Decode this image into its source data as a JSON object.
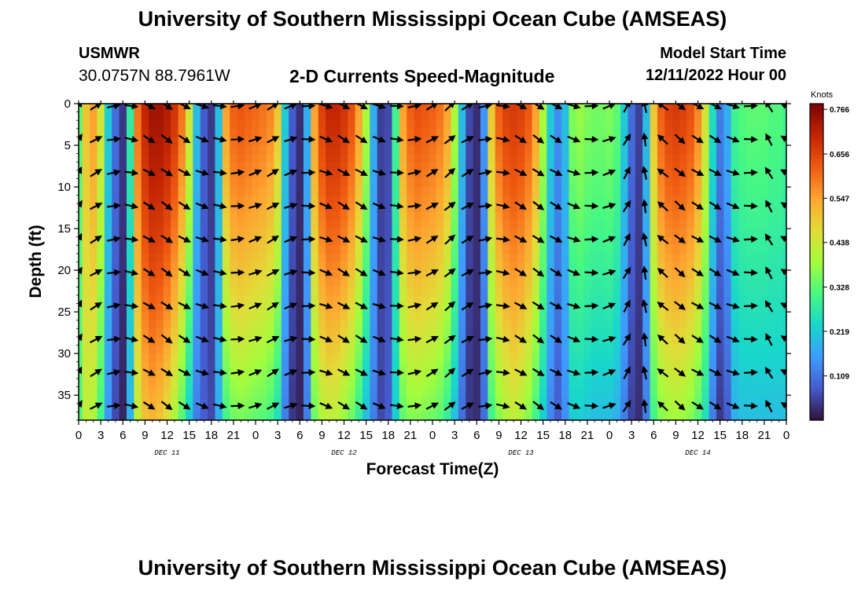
{
  "header": {
    "title": "University of Southern Mississippi Ocean Cube (AMSEAS)",
    "station": "USMWR",
    "coordinates": "30.0757N  88.7961W",
    "chart_title": "2-D Currents Speed-Magnitude",
    "start_label": "Model Start Time",
    "start_value": "12/11/2022 Hour 00"
  },
  "footer": {
    "title": "University of Southern Mississippi Ocean Cube (AMSEAS)"
  },
  "chart_data": {
    "type": "heatmap",
    "title": "2-D Currents Speed-Magnitude",
    "xlabel": "Forecast Time(Z)",
    "ylabel": "Depth (ft)",
    "x_range_hours": [
      0,
      96
    ],
    "y_range_ft": [
      0,
      38
    ],
    "x_tick_labels": [
      "0",
      "3",
      "6",
      "9",
      "12",
      "15",
      "18",
      "21",
      "0",
      "3",
      "6",
      "9",
      "12",
      "15",
      "18",
      "21",
      "0",
      "3",
      "6",
      "9",
      "12",
      "15",
      "18",
      "21",
      "0",
      "3",
      "6",
      "9",
      "12",
      "15",
      "18",
      "21",
      "0"
    ],
    "y_tick_values": [
      0,
      5,
      10,
      15,
      20,
      25,
      30,
      35
    ],
    "day_labels": [
      {
        "label": "DEC 11",
        "hour": 12
      },
      {
        "label": "DEC 12",
        "hour": 36
      },
      {
        "label": "DEC 13",
        "hour": 60
      },
      {
        "label": "DEC 14",
        "hour": 84
      }
    ],
    "colorbar": {
      "unit": "Knots",
      "min": 0.0,
      "max": 0.78,
      "tick_labels": [
        "0.766",
        "0.656",
        "0.547",
        "0.438",
        "0.328",
        "0.219",
        "0.109"
      ],
      "tick_values": [
        0.766,
        0.656,
        0.547,
        0.438,
        0.328,
        0.219,
        0.109
      ]
    },
    "speed_profile_hours": [
      0,
      1,
      2,
      3,
      4,
      5,
      6,
      7,
      8,
      9,
      10,
      11,
      12,
      13,
      14,
      15,
      16,
      17,
      18,
      19,
      20,
      21,
      22,
      23,
      24,
      25,
      26,
      27,
      28,
      29,
      30,
      31,
      32,
      33,
      34,
      35,
      36,
      37,
      38,
      39,
      40,
      41,
      42,
      43,
      44,
      45,
      46,
      47,
      48,
      49,
      50,
      51,
      52,
      53,
      54,
      55,
      56,
      57,
      58,
      59,
      60,
      61,
      62,
      63,
      64,
      65,
      66,
      67,
      68,
      69,
      70,
      71,
      72,
      73,
      74,
      75,
      76,
      77,
      78,
      79,
      80,
      81,
      82,
      83,
      84,
      85,
      86,
      87,
      88,
      89,
      90,
      91,
      92,
      93,
      94,
      95,
      96
    ],
    "surface_speed_knots": [
      0.33,
      0.5,
      0.55,
      0.45,
      0.22,
      0.1,
      0.04,
      0.28,
      0.6,
      0.7,
      0.74,
      0.74,
      0.72,
      0.68,
      0.6,
      0.45,
      0.2,
      0.08,
      0.04,
      0.2,
      0.55,
      0.62,
      0.63,
      0.62,
      0.61,
      0.6,
      0.58,
      0.5,
      0.22,
      0.08,
      0.03,
      0.18,
      0.55,
      0.66,
      0.7,
      0.7,
      0.68,
      0.64,
      0.55,
      0.4,
      0.18,
      0.05,
      0.06,
      0.3,
      0.55,
      0.62,
      0.64,
      0.63,
      0.62,
      0.6,
      0.55,
      0.4,
      0.2,
      0.06,
      0.03,
      0.15,
      0.5,
      0.62,
      0.66,
      0.67,
      0.66,
      0.63,
      0.55,
      0.4,
      0.22,
      0.14,
      0.2,
      0.36,
      0.38,
      0.36,
      0.35,
      0.35,
      0.36,
      0.33,
      0.22,
      0.1,
      0.05,
      0.2,
      0.5,
      0.62,
      0.66,
      0.67,
      0.66,
      0.64,
      0.58,
      0.45,
      0.25,
      0.12,
      0.18,
      0.3,
      0.32,
      0.33,
      0.33,
      0.33,
      0.32,
      0.32,
      0.3
    ],
    "bottom_speed_knots": [
      0.32,
      0.42,
      0.4,
      0.3,
      0.15,
      0.06,
      0.02,
      0.18,
      0.42,
      0.5,
      0.52,
      0.5,
      0.46,
      0.4,
      0.32,
      0.22,
      0.12,
      0.08,
      0.06,
      0.18,
      0.3,
      0.34,
      0.35,
      0.34,
      0.33,
      0.32,
      0.3,
      0.25,
      0.12,
      0.04,
      0.02,
      0.12,
      0.34,
      0.4,
      0.42,
      0.41,
      0.38,
      0.34,
      0.28,
      0.2,
      0.12,
      0.06,
      0.08,
      0.22,
      0.33,
      0.36,
      0.36,
      0.35,
      0.34,
      0.32,
      0.28,
      0.2,
      0.1,
      0.04,
      0.03,
      0.1,
      0.3,
      0.36,
      0.4,
      0.42,
      0.4,
      0.36,
      0.3,
      0.22,
      0.13,
      0.08,
      0.14,
      0.22,
      0.22,
      0.21,
      0.2,
      0.2,
      0.2,
      0.18,
      0.12,
      0.05,
      0.03,
      0.12,
      0.3,
      0.36,
      0.38,
      0.39,
      0.38,
      0.36,
      0.32,
      0.25,
      0.12,
      0.04,
      0.08,
      0.18,
      0.2,
      0.2,
      0.2,
      0.2,
      0.2,
      0.2,
      0.2
    ],
    "vector_depths_ft": [
      0,
      4,
      8,
      12,
      16,
      20,
      24,
      28,
      32,
      36
    ],
    "vector_hours": [
      0,
      2.4,
      4.8,
      7.2,
      9.6,
      12,
      14.4,
      16.8,
      19.2,
      21.6,
      24,
      26.4,
      28.8,
      31.2,
      33.6,
      36,
      38.4,
      40.8,
      43.2,
      45.6,
      48,
      50.4,
      52.8,
      55.2,
      57.6,
      60,
      62.4,
      64.8,
      67.2,
      69.6,
      72,
      74.4,
      76.8,
      79.2,
      81.6,
      84,
      86.4,
      88.8,
      91.2,
      93.6,
      96
    ],
    "vector_direction_deg": [
      -60,
      -30,
      -10,
      10,
      30,
      35,
      30,
      20,
      10,
      -5,
      -20,
      -30,
      -20,
      0,
      20,
      30,
      30,
      20,
      5,
      -10,
      -30,
      -40,
      -30,
      -10,
      10,
      30,
      35,
      30,
      20,
      0,
      -20,
      -60,
      -100,
      -140,
      40,
      30,
      30,
      20,
      0,
      -120,
      -150
    ]
  }
}
